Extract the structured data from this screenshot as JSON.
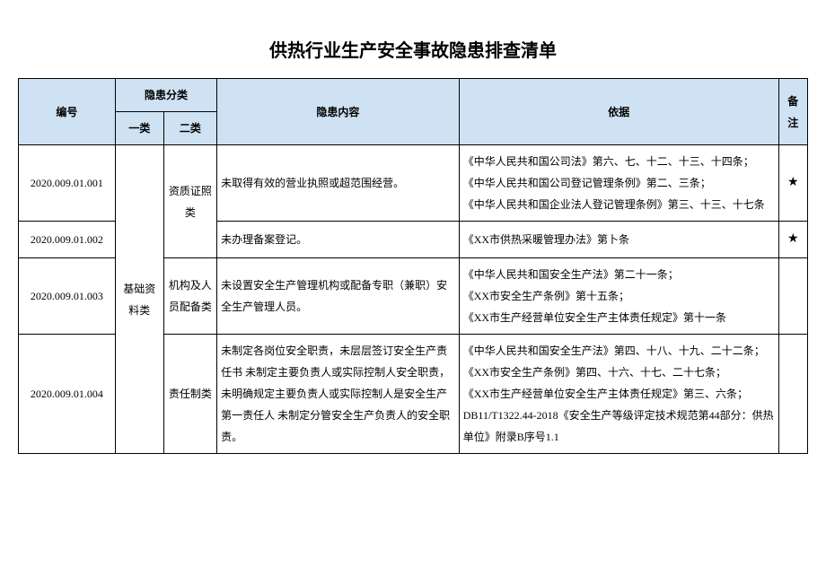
{
  "title": "供热行业生产安全事故隐患排查清单",
  "header": {
    "id": "编号",
    "cat_group": "隐患分类",
    "cat1": "一类",
    "cat2": "二类",
    "content": "隐患内容",
    "basis": "依据",
    "note": "备注"
  },
  "cat1_label": "基础资料类",
  "rows": [
    {
      "id": "2020.009.01.001",
      "cat2": "资质证照类",
      "content": "未取得有效的营业执照或超范围经营。",
      "basis": "《中华人民共和国公司法》第六、七、十二、十三、十四条；\n《中华人民共和国公司登记管理条例》第二、三条；\n《中华人民共和国企业法人登记管理条例》第三、十三、十七条",
      "note": "★"
    },
    {
      "id": "2020.009.01.002",
      "cat2": "",
      "content": "未办理备案登记。",
      "basis": "《XX市供热采暖管理办法》第卜条",
      "note": "★"
    },
    {
      "id": "2020.009.01.003",
      "cat2": "机构及人员配备类",
      "content": "未设置安全生产管理机构或配备专职（兼职）安全生产管理人员。",
      "basis": "《中华人民共和国安全生产法》第二十一条；\n《XX市安全生产条例》第十五条；\n《XX市生产经营单位安全生产主体责任规定》第十一条",
      "note": ""
    },
    {
      "id": "2020.009.01.004",
      "cat2": "责任制类",
      "content": "未制定各岗位安全职责，未层层签订安全生产责任书 未制定主要负责人或实际控制人安全职责，未明确规定主要负责人或实际控制人是安全生产第一责任人 未制定分管安全生产负责人的安全职责。",
      "basis": "《中华人民共和国安全生产法》第四、十八、十九、二十二条；\n《XX市安全生产条例》第四、十六、十七、二十七条；\n《XX市生产经营单位安全生产主体责任规定》第三、六条；\nDB11/T1322.44-2018《安全生产等级评定技术规范第44部分：供热单位》附录B序号1.1",
      "note": ""
    }
  ],
  "colors": {
    "header_bg": "#cfe2f3",
    "border": "#000000",
    "text": "#000000",
    "bg": "#ffffff"
  }
}
